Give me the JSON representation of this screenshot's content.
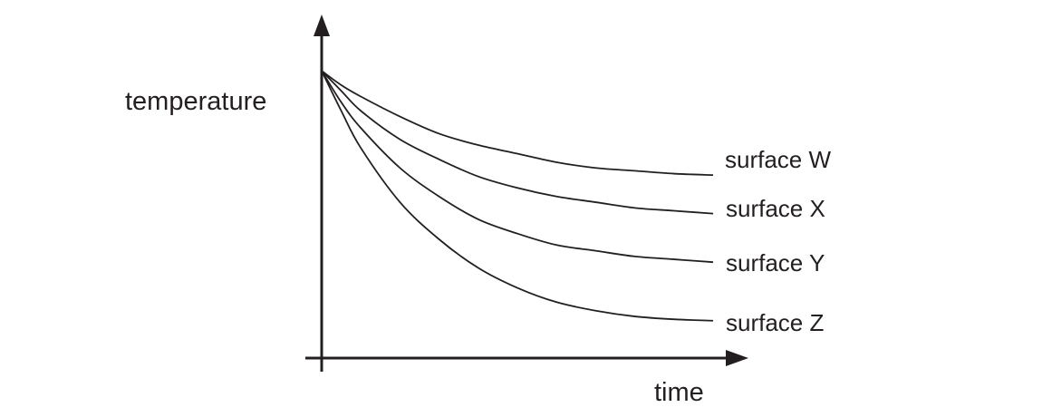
{
  "chart_data": {
    "type": "line",
    "title": "",
    "xlabel": "time",
    "ylabel": "temperature",
    "x_ticks": [],
    "y_ticks": [],
    "grid": false,
    "legend": "inline labels at right end of each curve",
    "xlim": [
      0,
      1
    ],
    "ylim": [
      0,
      1
    ],
    "series": [
      {
        "name": "surface W",
        "x": [
          0,
          0.05,
          0.1,
          0.2,
          0.3,
          0.4,
          0.5,
          0.6,
          0.7,
          0.8,
          0.9,
          1.0
        ],
        "y": [
          0.99,
          0.94,
          0.9,
          0.83,
          0.77,
          0.73,
          0.7,
          0.67,
          0.65,
          0.64,
          0.63,
          0.625
        ]
      },
      {
        "name": "surface X",
        "x": [
          0,
          0.05,
          0.1,
          0.2,
          0.3,
          0.4,
          0.5,
          0.6,
          0.7,
          0.8,
          0.9,
          1.0
        ],
        "y": [
          0.99,
          0.92,
          0.85,
          0.75,
          0.68,
          0.62,
          0.58,
          0.55,
          0.53,
          0.51,
          0.5,
          0.49
        ]
      },
      {
        "name": "surface Y",
        "x": [
          0,
          0.05,
          0.1,
          0.2,
          0.3,
          0.4,
          0.5,
          0.6,
          0.7,
          0.8,
          0.9,
          1.0
        ],
        "y": [
          0.99,
          0.88,
          0.79,
          0.65,
          0.55,
          0.47,
          0.42,
          0.38,
          0.36,
          0.34,
          0.33,
          0.32
        ]
      },
      {
        "name": "surface Z",
        "x": [
          0,
          0.05,
          0.1,
          0.2,
          0.3,
          0.4,
          0.5,
          0.6,
          0.7,
          0.8,
          0.9,
          1.0
        ],
        "y": [
          0.99,
          0.85,
          0.72,
          0.53,
          0.4,
          0.3,
          0.23,
          0.18,
          0.15,
          0.13,
          0.12,
          0.115
        ]
      }
    ]
  }
}
